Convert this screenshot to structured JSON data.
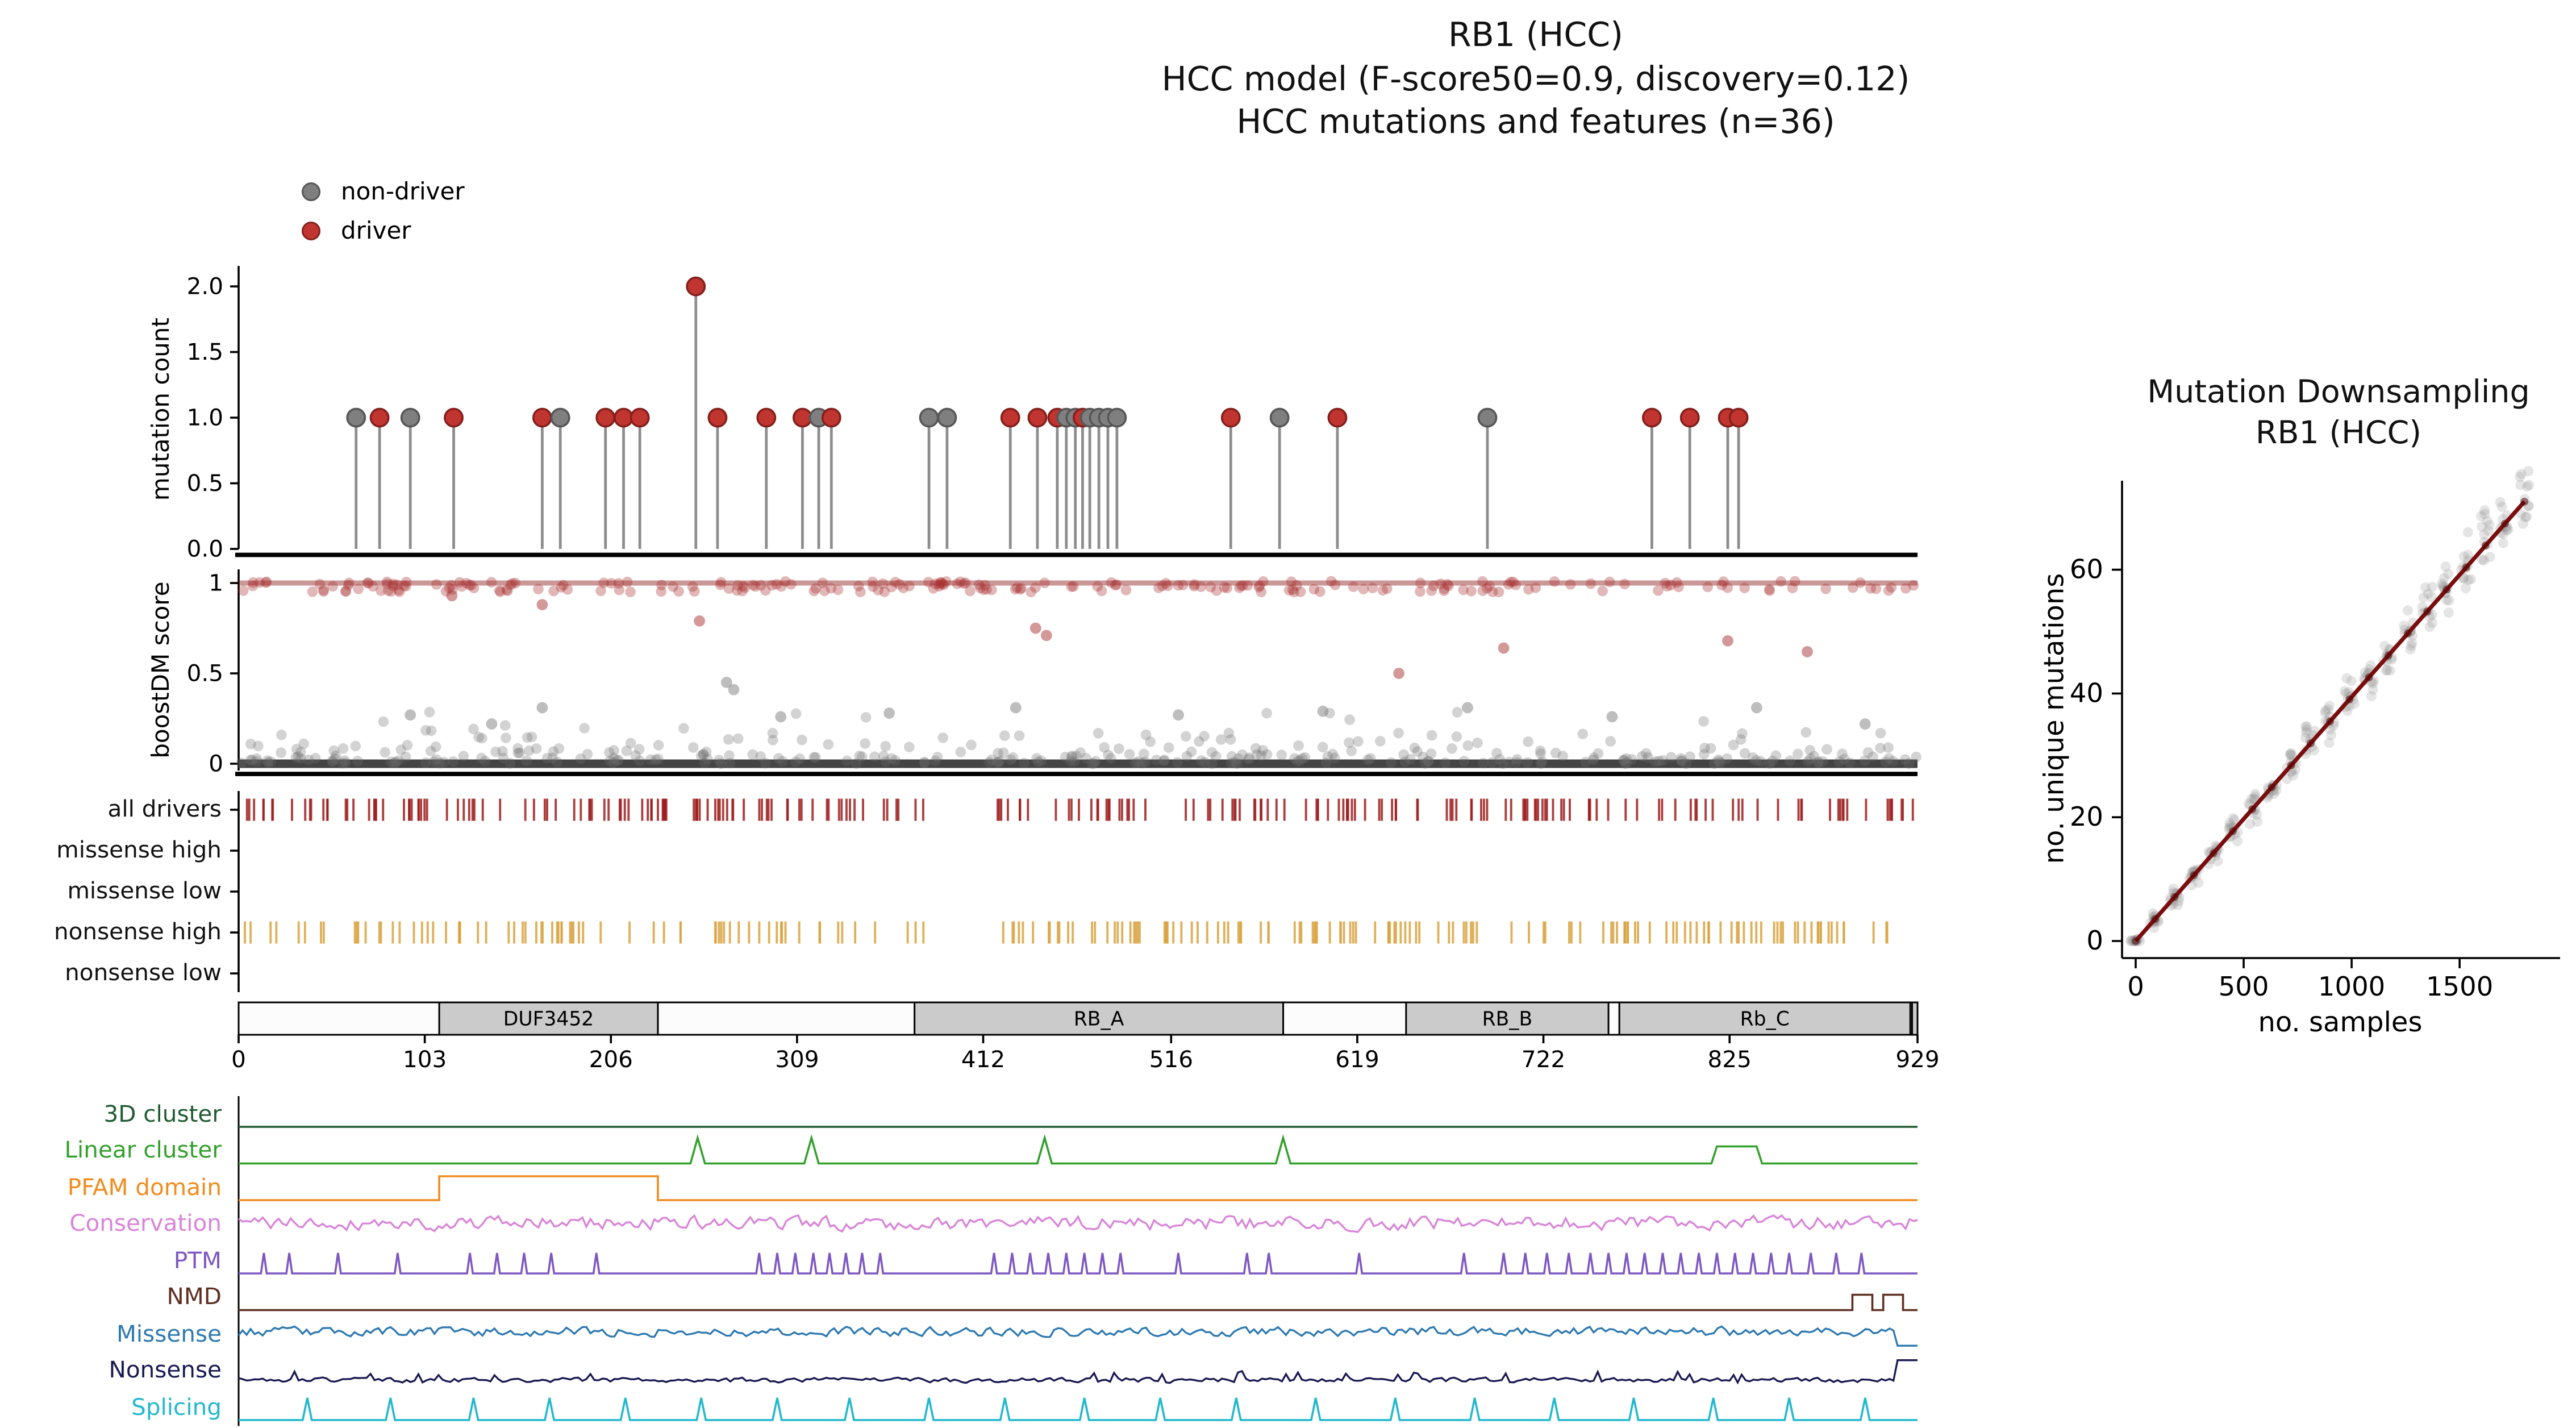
{
  "title": {
    "line1": "RB1 (HCC)",
    "line2": "HCC model (F-score50=0.9, discovery=0.12)",
    "line3": "HCC mutations and features (n=36)"
  },
  "legend": {
    "items": [
      {
        "label": "non-driver",
        "color": "#7f7f7f",
        "edge": "#565656"
      },
      {
        "label": "driver",
        "color": "#c13530",
        "edge": "#841f1c"
      }
    ]
  },
  "chart_data": [
    {
      "id": "mutation-needle-plot",
      "type": "scatter",
      "subtype": "lollipop",
      "ylabel": "mutation count",
      "ytick_values": [
        0.0,
        0.5,
        1.0,
        1.5,
        2.0
      ],
      "ytick_labels": [
        "0.0",
        "0.5",
        "1.0",
        "1.5",
        "2.0"
      ],
      "xlim": [
        0,
        929
      ],
      "ylim": [
        0,
        2.1
      ],
      "mutations": [
        {
          "pos": 65,
          "count": 1,
          "driver": false
        },
        {
          "pos": 78,
          "count": 1,
          "driver": true
        },
        {
          "pos": 95,
          "count": 1,
          "driver": false
        },
        {
          "pos": 119,
          "count": 1,
          "driver": true
        },
        {
          "pos": 168,
          "count": 1,
          "driver": true
        },
        {
          "pos": 178,
          "count": 1,
          "driver": false
        },
        {
          "pos": 203,
          "count": 1,
          "driver": true
        },
        {
          "pos": 213,
          "count": 1,
          "driver": true
        },
        {
          "pos": 222,
          "count": 1,
          "driver": true
        },
        {
          "pos": 253,
          "count": 2,
          "driver": true
        },
        {
          "pos": 265,
          "count": 1,
          "driver": true
        },
        {
          "pos": 292,
          "count": 1,
          "driver": true
        },
        {
          "pos": 312,
          "count": 1,
          "driver": true
        },
        {
          "pos": 321,
          "count": 1,
          "driver": false
        },
        {
          "pos": 328,
          "count": 1,
          "driver": true
        },
        {
          "pos": 382,
          "count": 1,
          "driver": false
        },
        {
          "pos": 392,
          "count": 1,
          "driver": false
        },
        {
          "pos": 427,
          "count": 1,
          "driver": true
        },
        {
          "pos": 442,
          "count": 1,
          "driver": true
        },
        {
          "pos": 453,
          "count": 1,
          "driver": true
        },
        {
          "pos": 458,
          "count": 1,
          "driver": false
        },
        {
          "pos": 463,
          "count": 1,
          "driver": false
        },
        {
          "pos": 467,
          "count": 1,
          "driver": true
        },
        {
          "pos": 471,
          "count": 1,
          "driver": false
        },
        {
          "pos": 476,
          "count": 1,
          "driver": false
        },
        {
          "pos": 481,
          "count": 1,
          "driver": false
        },
        {
          "pos": 486,
          "count": 1,
          "driver": false
        },
        {
          "pos": 549,
          "count": 1,
          "driver": true
        },
        {
          "pos": 576,
          "count": 1,
          "driver": false
        },
        {
          "pos": 608,
          "count": 1,
          "driver": true
        },
        {
          "pos": 691,
          "count": 1,
          "driver": false
        },
        {
          "pos": 782,
          "count": 1,
          "driver": true
        },
        {
          "pos": 803,
          "count": 1,
          "driver": true
        },
        {
          "pos": 824,
          "count": 1,
          "driver": true
        },
        {
          "pos": 830,
          "count": 1,
          "driver": true
        }
      ]
    },
    {
      "id": "boostdm-score-plot",
      "type": "scatter",
      "ylabel": "boostDM score",
      "ytick_values": [
        0,
        0.5,
        1
      ],
      "ytick_labels": [
        "0",
        "0.5",
        "1"
      ],
      "xlim": [
        0,
        929
      ],
      "ylim": [
        0,
        1.05
      ],
      "bands": {
        "driver": {
          "n": 230,
          "y_mean": 0.98,
          "y_jitter": 0.03,
          "seed": 11,
          "color": "#a83232"
        },
        "nondriver": {
          "n": 340,
          "y_scale": 0.055,
          "max": 0.45,
          "seed": 23,
          "color": "#6e6e6e"
        }
      },
      "outliers_driver": [
        [
          118,
          0.93
        ],
        [
          168,
          0.88
        ],
        [
          255,
          0.79
        ],
        [
          441,
          0.75
        ],
        [
          447,
          0.71
        ],
        [
          642,
          0.5
        ],
        [
          700,
          0.64
        ],
        [
          824,
          0.68
        ],
        [
          868,
          0.62
        ]
      ],
      "outliers_nondriver": [
        [
          95,
          0.27
        ],
        [
          140,
          0.22
        ],
        [
          168,
          0.31
        ],
        [
          270,
          0.45
        ],
        [
          274,
          0.41
        ],
        [
          300,
          0.26
        ],
        [
          360,
          0.28
        ],
        [
          430,
          0.31
        ],
        [
          520,
          0.27
        ],
        [
          600,
          0.29
        ],
        [
          680,
          0.31
        ],
        [
          760,
          0.26
        ],
        [
          840,
          0.31
        ],
        [
          900,
          0.22
        ]
      ]
    },
    {
      "id": "driver-saturation-tracks",
      "type": "heatmap",
      "subtype": "tick-tracks",
      "xlim": [
        0,
        929
      ],
      "rows": [
        {
          "label": "all drivers",
          "color": "#9e1f1f",
          "n": 230,
          "seed": 5,
          "gaps": [
            [
              383,
              418
            ]
          ]
        },
        {
          "label": "missense high",
          "color": "#9e1f1f",
          "n": 0
        },
        {
          "label": "missense low",
          "color": "#9e1f1f",
          "n": 0
        },
        {
          "label": "nonsense high",
          "color": "#d9a441",
          "n": 205,
          "seed": 9,
          "gaps": [
            [
              383,
              414
            ]
          ]
        },
        {
          "label": "nonsense low",
          "color": "#d9a441",
          "n": 0
        }
      ]
    },
    {
      "id": "protein-domain-map",
      "type": "table",
      "subtype": "domain-bar",
      "xlim": [
        0,
        929
      ],
      "xticks": [
        0,
        103,
        206,
        309,
        412,
        516,
        619,
        722,
        825,
        929
      ],
      "domains": [
        {
          "name": "DUF3452",
          "start": 111,
          "end": 232
        },
        {
          "name": "RB_A",
          "start": 374,
          "end": 578
        },
        {
          "name": "RB_B",
          "start": 646,
          "end": 758
        },
        {
          "name": "Rb_C",
          "start": 764,
          "end": 925
        },
        {
          "name": "",
          "start": 926,
          "end": 929
        }
      ]
    },
    {
      "id": "feature-tracks",
      "type": "line",
      "subtype": "stacked-feature-tracks",
      "xlim": [
        0,
        929
      ],
      "tracks": [
        {
          "label": "3D cluster",
          "color": "#1e5b31",
          "kind": "flat"
        },
        {
          "label": "Linear cluster",
          "color": "#33a02c",
          "kind": "events",
          "spikes": [
            254,
            317,
            446,
            578
          ],
          "spike_h": 15,
          "spike_w": 4,
          "plateaus": [
            [
              818,
              840
            ]
          ]
        },
        {
          "label": "PFAM domain",
          "color": "#f08c1e",
          "kind": "events",
          "segments": [
            [
              111,
              232
            ]
          ]
        },
        {
          "label": "Conservation",
          "color": "#d884d8",
          "kind": "noise",
          "seed": 41,
          "amp": 0.45,
          "center": 0.5
        },
        {
          "label": "PTM",
          "color": "#7e57c2",
          "kind": "events",
          "spike_h": 12,
          "spike_w": 1.6,
          "spikes": [
            14,
            28,
            55,
            88,
            128,
            143,
            158,
            173,
            198,
            288,
            298,
            308,
            318,
            327,
            336,
            345,
            355,
            418,
            428,
            438,
            448,
            458,
            468,
            478,
            488,
            520,
            558,
            570,
            620,
            678,
            700,
            712,
            724,
            736,
            748,
            758,
            768,
            778,
            788,
            798,
            808,
            818,
            828,
            838,
            848,
            858,
            870,
            884,
            898
          ]
        },
        {
          "label": "NMD",
          "color": "#5d2f23",
          "kind": "events",
          "pulses": [
            [
              893,
              904
            ],
            [
              910,
              921
            ]
          ]
        },
        {
          "label": "Missense",
          "color": "#2e79b0",
          "kind": "noise",
          "seed": 53,
          "amp": 0.3,
          "center": 0.55,
          "end": "drop"
        },
        {
          "label": "Nonsense",
          "color": "#191952",
          "kind": "noise",
          "seed": 67,
          "amp": 0.15,
          "center": 0.12,
          "random_spikes": true,
          "end": "rise"
        },
        {
          "label": "Splicing",
          "color": "#22b8ce",
          "kind": "events",
          "spike_h": 13,
          "spike_w": 2.5,
          "spikes": [
            38,
            84,
            130,
            172,
            214,
            256,
            298,
            338,
            382,
            424,
            468,
            510,
            552,
            596,
            640,
            684,
            728,
            772,
            816,
            858,
            900
          ]
        }
      ]
    },
    {
      "id": "mutation-downsampling",
      "type": "scatter",
      "title_line1": "Mutation Downsampling",
      "title_line2": "RB1 (HCC)",
      "xlabel": "no. samples",
      "ylabel": "no. unique mutations",
      "xtick_values": [
        0,
        500,
        1000,
        1500
      ],
      "xtick_labels": [
        "0",
        "500",
        "1000",
        "1500"
      ],
      "ytick_values": [
        0,
        20,
        40,
        60
      ],
      "ytick_labels": [
        "0",
        "20",
        "40",
        "60"
      ],
      "xlim": [
        -90,
        1960
      ],
      "ylim": [
        -3,
        75
      ],
      "trend": {
        "x0": 0,
        "y0": 0,
        "x1": 1800,
        "y1": 71,
        "color": "#7a0e0e"
      },
      "columns": {
        "start": 0,
        "step": 90,
        "count": 21,
        "points_per": 13,
        "spread": 4.5,
        "seed": 77,
        "color": "#8a8a8a"
      }
    }
  ]
}
